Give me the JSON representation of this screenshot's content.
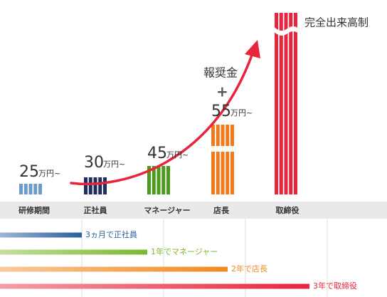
{
  "stages": [
    {
      "label": "研修期間",
      "salary": "25",
      "unit": "万円~",
      "color": "#6b9cc9"
    },
    {
      "label": "正社員",
      "salary": "30",
      "unit": "万円~",
      "color": "#1c2f5f"
    },
    {
      "label": "マネージャー",
      "salary": "45",
      "unit": "万円~",
      "color": "#4b9a1c"
    },
    {
      "label": "店長",
      "bonus": "報奨金",
      "plus": "+",
      "salary": "55",
      "unit": "万円~",
      "color": "#f17b1c"
    },
    {
      "label": "取締役",
      "salary_text": "完全出来高制",
      "color": "#e8253d"
    }
  ],
  "timeline": [
    {
      "label": "3ヵ月で正社員",
      "color": "#2a5f9c"
    },
    {
      "label": "1年でマネージャー",
      "color": "#7cb82c"
    },
    {
      "label": "2年で店長",
      "color": "#ef8a20"
    },
    {
      "label": "3年で取締役",
      "color": "#e8253d"
    }
  ]
}
